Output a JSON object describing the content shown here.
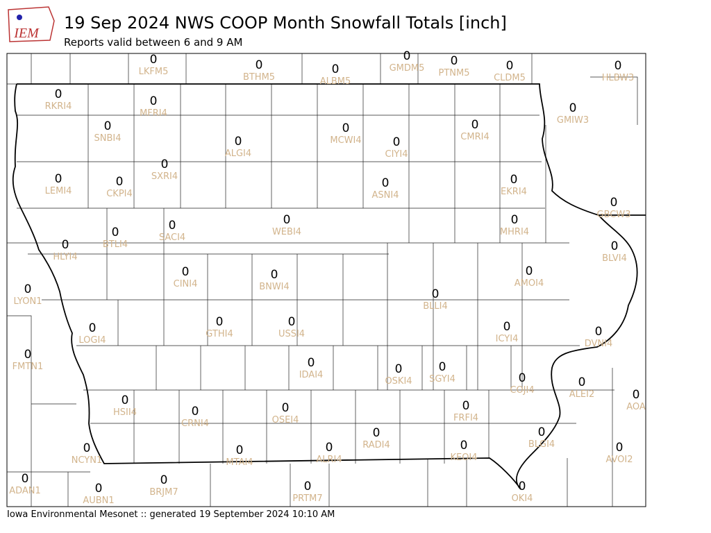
{
  "header": {
    "logo_text": "IEM",
    "title": "19 Sep 2024 NWS COOP Month Snowfall Totals [inch]",
    "subtitle": "Reports valid between 6 and 9 AM"
  },
  "footer": "Iowa Environmental Mesonet :: generated 19 September 2024 10:10 AM",
  "stations": [
    {
      "id": "LKFM5",
      "value": 0
    },
    {
      "id": "BTHM5",
      "value": 0
    },
    {
      "id": "ALBM5",
      "value": 0
    },
    {
      "id": "GMDM5",
      "value": 0
    },
    {
      "id": "PTNM5",
      "value": 0
    },
    {
      "id": "CLDM5",
      "value": 0
    },
    {
      "id": "HLBW3",
      "value": 0
    },
    {
      "id": "RKRI4",
      "value": 0
    },
    {
      "id": "MFRI4",
      "value": 0
    },
    {
      "id": "SNBI4",
      "value": 0
    },
    {
      "id": "ALGI4",
      "value": 0
    },
    {
      "id": "MCWI4",
      "value": 0
    },
    {
      "id": "CIYI4",
      "value": 0
    },
    {
      "id": "CMRI4",
      "value": 0
    },
    {
      "id": "GMIW3",
      "value": 0
    },
    {
      "id": "SXRI4",
      "value": 0
    },
    {
      "id": "LEMI4",
      "value": 0
    },
    {
      "id": "CKPI4",
      "value": 0
    },
    {
      "id": "ASNI4",
      "value": 0
    },
    {
      "id": "EKRI4",
      "value": 0
    },
    {
      "id": "GBCW3",
      "value": 0
    },
    {
      "id": "SACI4",
      "value": 0
    },
    {
      "id": "WEBI4",
      "value": 0
    },
    {
      "id": "MHRI4",
      "value": 0
    },
    {
      "id": "BTLI4",
      "value": 0
    },
    {
      "id": "HLYI4",
      "value": 0
    },
    {
      "id": "BLVI4",
      "value": 0
    },
    {
      "id": "CINI4",
      "value": 0
    },
    {
      "id": "BNWI4",
      "value": 0
    },
    {
      "id": "AMOI4",
      "value": 0
    },
    {
      "id": "LYON1",
      "value": 0
    },
    {
      "id": "BLLI4",
      "value": 0
    },
    {
      "id": "GTHI4",
      "value": 0
    },
    {
      "id": "USSI4",
      "value": 0
    },
    {
      "id": "LOGI4",
      "value": 0
    },
    {
      "id": "ICYI4",
      "value": 0
    },
    {
      "id": "DVNI4",
      "value": 0
    },
    {
      "id": "FMTN1",
      "value": 0
    },
    {
      "id": "IDAI4",
      "value": 0
    },
    {
      "id": "OSKI4",
      "value": 0
    },
    {
      "id": "SGYI4",
      "value": 0
    },
    {
      "id": "COJI4",
      "value": 0
    },
    {
      "id": "ALEI2",
      "value": 0
    },
    {
      "id": "AOA",
      "value": 0
    },
    {
      "id": "HSII4",
      "value": 0
    },
    {
      "id": "CRNI4",
      "value": 0
    },
    {
      "id": "OSEI4",
      "value": 0
    },
    {
      "id": "FRFI4",
      "value": 0
    },
    {
      "id": "RADI4",
      "value": 0
    },
    {
      "id": "BLGI4",
      "value": 0
    },
    {
      "id": "AVOI2",
      "value": 0
    },
    {
      "id": "NCYN1",
      "value": 0
    },
    {
      "id": "MTAI4",
      "value": 0
    },
    {
      "id": "ALRI4",
      "value": 0
    },
    {
      "id": "KEOI4",
      "value": 0
    },
    {
      "id": "ADAN1",
      "value": 0
    },
    {
      "id": "BRJM7",
      "value": 0
    },
    {
      "id": "AUBN1",
      "value": 0
    },
    {
      "id": "PRTM7",
      "value": 0
    },
    {
      "id": "OKI4",
      "value": 0
    }
  ]
}
